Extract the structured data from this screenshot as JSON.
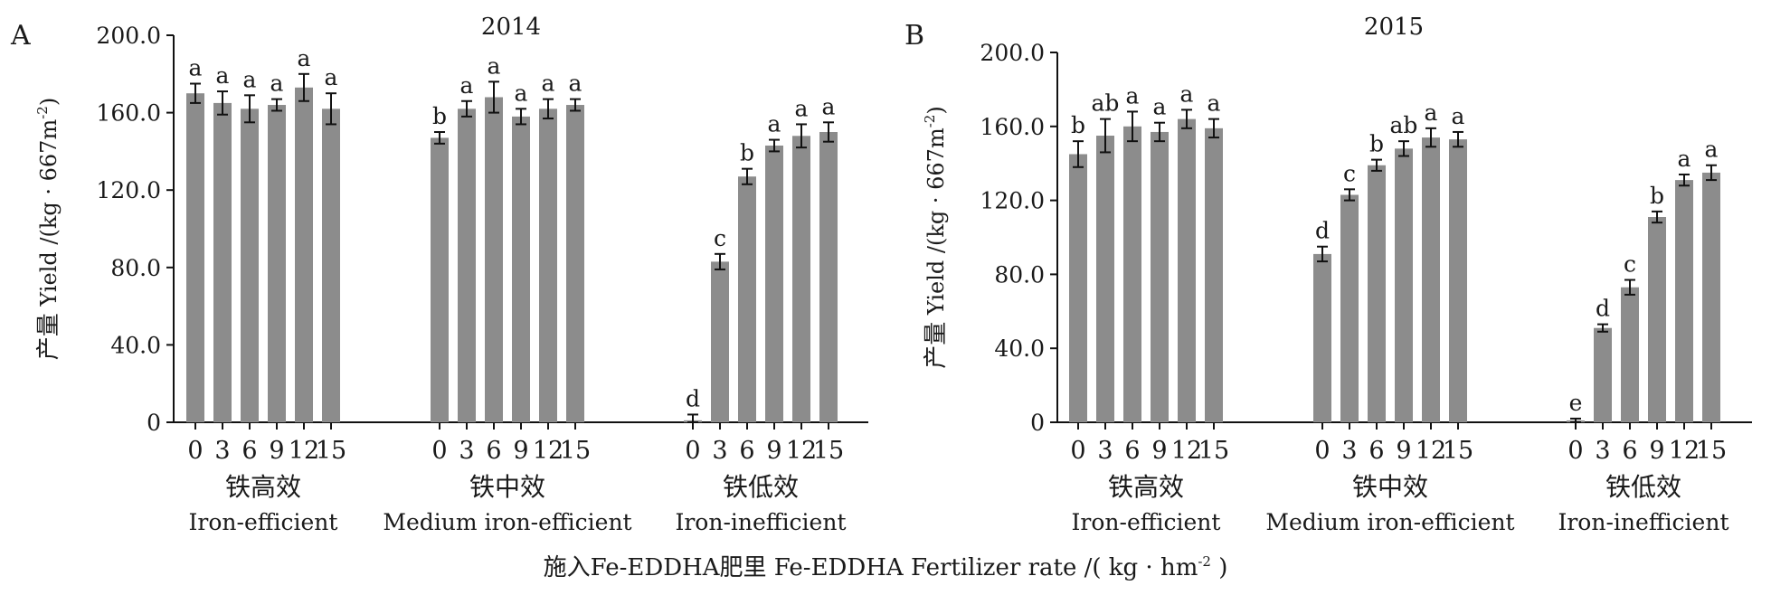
{
  "chart_data": [
    {
      "panel_label": "A",
      "title": "2014",
      "type": "bar",
      "ylabel_cn": "产量",
      "ylabel_en": "Yield /(kg · 667m",
      "ylabel_sup": "-2",
      "ylabel_end": ")",
      "ylim": [
        0,
        200
      ],
      "yticks": [
        "0",
        "40.0",
        "80.0",
        "120.0",
        "160.0",
        "200.0"
      ],
      "ytick_values": [
        0,
        40,
        80,
        120,
        160,
        200
      ],
      "groups": [
        {
          "name_cn": "铁高效",
          "name_en": "Iron-efficient",
          "rates": [
            "0",
            "3",
            "6",
            "9",
            "12",
            "15"
          ],
          "values": [
            170,
            165,
            162,
            164,
            173,
            162
          ],
          "errors": [
            5,
            6,
            7,
            3,
            7,
            8
          ],
          "letters": [
            "a",
            "a",
            "a",
            "a",
            "a",
            "a"
          ]
        },
        {
          "name_cn": "铁中效",
          "name_en": "Medium iron-efficient",
          "rates": [
            "0",
            "3",
            "6",
            "9",
            "12",
            "15"
          ],
          "values": [
            147,
            162,
            168,
            158,
            162,
            164
          ],
          "errors": [
            3,
            4,
            8,
            4,
            5,
            3
          ],
          "letters": [
            "b",
            "a",
            "a",
            "a",
            "a",
            "a"
          ]
        },
        {
          "name_cn": "铁低效",
          "name_en": "Iron-inefficient",
          "rates": [
            "0",
            "3",
            "6",
            "9",
            "12",
            "15"
          ],
          "values": [
            1,
            83,
            127,
            143,
            148,
            150
          ],
          "errors": [
            3,
            4,
            4,
            3,
            6,
            5
          ],
          "letters": [
            "d",
            "c",
            "b",
            "a",
            "a",
            "a"
          ]
        }
      ]
    },
    {
      "panel_label": "B",
      "title": "2015",
      "type": "bar",
      "ylabel_cn": "产量",
      "ylabel_en": "Yield /(kg · 667m",
      "ylabel_sup": "-2",
      "ylabel_end": ")",
      "ylim": [
        0,
        200
      ],
      "yticks": [
        "0",
        "40.0",
        "80.0",
        "120.0",
        "160.0",
        "200.0"
      ],
      "ytick_values": [
        0,
        40,
        80,
        120,
        160,
        200
      ],
      "groups": [
        {
          "name_cn": "铁高效",
          "name_en": "Iron-efficient",
          "rates": [
            "0",
            "3",
            "6",
            "9",
            "12",
            "15"
          ],
          "values": [
            145,
            155,
            160,
            157,
            164,
            159
          ],
          "errors": [
            7,
            9,
            8,
            5,
            5,
            5
          ],
          "letters": [
            "b",
            "ab",
            "a",
            "a",
            "a",
            "a"
          ]
        },
        {
          "name_cn": "铁中效",
          "name_en": "Medium iron-efficient",
          "rates": [
            "0",
            "3",
            "6",
            "9",
            "12",
            "15"
          ],
          "values": [
            91,
            123,
            139,
            148,
            154,
            153
          ],
          "errors": [
            4,
            3,
            3,
            4,
            5,
            4
          ],
          "letters": [
            "d",
            "c",
            "b",
            "ab",
            "a",
            "a"
          ]
        },
        {
          "name_cn": "铁低效",
          "name_en": "Iron-inefficient",
          "rates": [
            "0",
            "3",
            "6",
            "9",
            "12",
            "15"
          ],
          "values": [
            1,
            51,
            73,
            111,
            131,
            135
          ],
          "errors": [
            1,
            2,
            4,
            3,
            3,
            4
          ],
          "letters": [
            "e",
            "d",
            "c",
            "b",
            "a",
            "a"
          ]
        }
      ]
    }
  ],
  "xlabel": {
    "cn": "施入Fe-EDDHA肥里",
    "en": "Fe-EDDHA Fertilizer rate /( kg · hm",
    "sup": "-2",
    "end": " )"
  },
  "bar_color": "#8c8c8c"
}
